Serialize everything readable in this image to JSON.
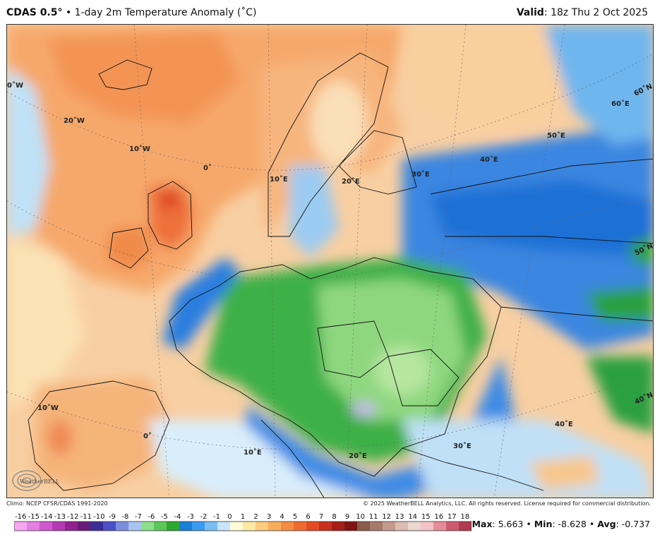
{
  "header": {
    "model": "CDAS 0.5",
    "degree": "°",
    "separator": "•",
    "product": "1-day 2m Temperature Anomaly (˚C)",
    "valid_label": "Valid",
    "valid_time": ": 18z Thu 2 Oct 2025"
  },
  "map": {
    "lon_labels": [
      "0˚W",
      "20˚W",
      "10˚W",
      "0˚",
      "10˚E",
      "20˚E",
      "30˚E",
      "40˚E",
      "50˚E",
      "60˚E",
      "60˚N",
      "50˚N",
      "40˚N",
      "10˚W",
      "0˚",
      "10˚E",
      "20˚E",
      "30˚E",
      "40˚E"
    ],
    "logo_text": "WeatherBELL"
  },
  "footer": {
    "climo": "Climo: NCEP CFSR/CDAS 1991-2020",
    "copyright": "© 2025 WeatherBELL Analytics, LLC. All rights reserved. License required for commercial distribution."
  },
  "colorbar": {
    "ticks": [
      "-16",
      "-15",
      "-14",
      "-13",
      "-12",
      "-11",
      "-10",
      "-9",
      "-8",
      "-7",
      "-6",
      "-5",
      "-4",
      "-3",
      "-2",
      "-1",
      "0",
      "1",
      "2",
      "3",
      "4",
      "5",
      "6",
      "7",
      "8",
      "9",
      "10",
      "11",
      "12",
      "13",
      "14",
      "15",
      "16",
      "17",
      "18"
    ],
    "colors": [
      "#f6a6f2",
      "#e67fe2",
      "#cf58cd",
      "#b539b5",
      "#93218f",
      "#6a1a7a",
      "#3d2c95",
      "#4c4fc7",
      "#7c8de0",
      "#a9c4f0",
      "#8be08b",
      "#5cc85c",
      "#2fa82f",
      "#1a7fd6",
      "#3a9cf0",
      "#79bdf5",
      "#c8e6fb",
      "#fffbd6",
      "#fde8a6",
      "#fbcc7f",
      "#f9ad5c",
      "#f58c43",
      "#ef6b2f",
      "#e34b23",
      "#c9301c",
      "#a51f18",
      "#7f1412",
      "#8a5a4a",
      "#a8796a",
      "#c49a8e",
      "#dbbbb2",
      "#ecd7d1",
      "#f3c3c8",
      "#e58d9a",
      "#cf5b6e",
      "#b23a4e"
    ]
  },
  "stats": {
    "max_label": "Max",
    "max_value": ": 5.663",
    "min_label": "Min",
    "min_value": ": -8.628",
    "avg_label": "Avg",
    "avg_value": ": -0.737",
    "sep": "•"
  }
}
